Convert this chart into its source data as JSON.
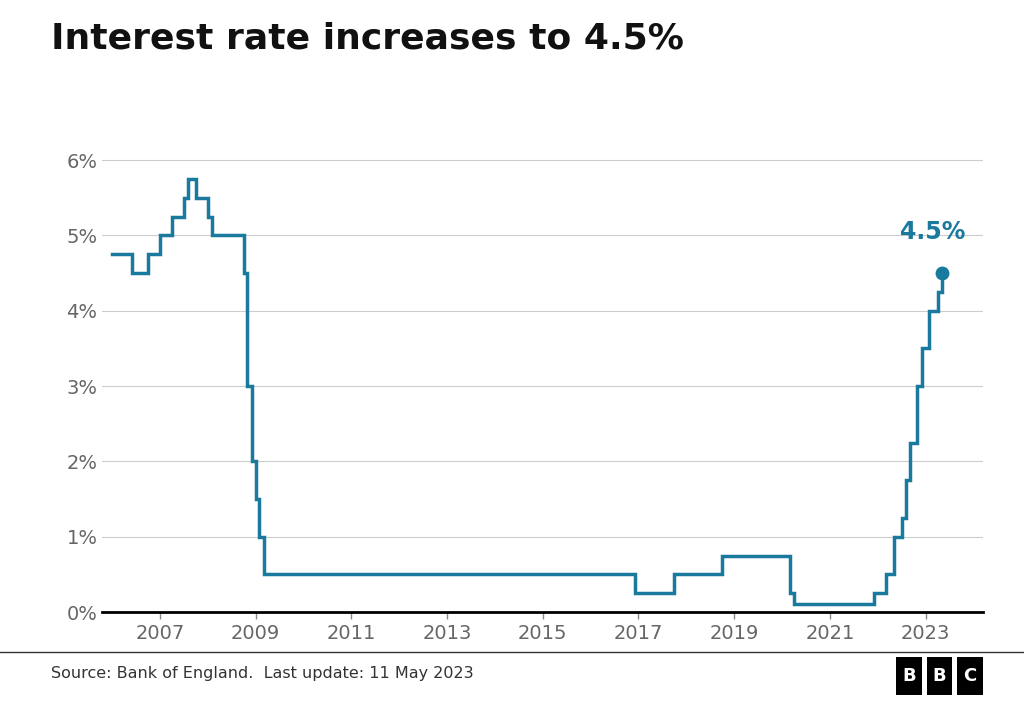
{
  "title": "Interest rate increases to 4.5%",
  "source_text": "Source: Bank of England.  Last update: 11 May 2023",
  "line_color": "#1a7a9e",
  "annotation_color": "#1a7a9e",
  "background_color": "#ffffff",
  "ylim": [
    0,
    6.5
  ],
  "yticks": [
    0,
    1,
    2,
    3,
    4,
    5,
    6
  ],
  "ytick_labels": [
    "0%",
    "1%",
    "2%",
    "3%",
    "4%",
    "5%",
    "6%"
  ],
  "xtick_years": [
    2007,
    2009,
    2011,
    2013,
    2015,
    2017,
    2019,
    2021,
    2023
  ],
  "annotation_value": "4.5%",
  "endpoint_year": 2023.35,
  "endpoint_value": 4.5,
  "xlim_left": 2005.8,
  "xlim_right": 2024.2,
  "data": [
    [
      2006.0,
      4.75
    ],
    [
      2006.42,
      4.5
    ],
    [
      2006.75,
      4.75
    ],
    [
      2007.0,
      5.0
    ],
    [
      2007.25,
      5.25
    ],
    [
      2007.5,
      5.5
    ],
    [
      2007.58,
      5.75
    ],
    [
      2007.75,
      5.5
    ],
    [
      2007.92,
      5.5
    ],
    [
      2008.0,
      5.25
    ],
    [
      2008.08,
      5.0
    ],
    [
      2008.25,
      5.0
    ],
    [
      2008.42,
      5.0
    ],
    [
      2008.58,
      5.0
    ],
    [
      2008.75,
      4.5
    ],
    [
      2008.83,
      3.0
    ],
    [
      2008.92,
      2.0
    ],
    [
      2009.0,
      1.5
    ],
    [
      2009.08,
      1.0
    ],
    [
      2009.17,
      0.5
    ],
    [
      2009.25,
      0.5
    ],
    [
      2016.67,
      0.5
    ],
    [
      2016.92,
      0.25
    ],
    [
      2017.0,
      0.25
    ],
    [
      2017.75,
      0.5
    ],
    [
      2018.0,
      0.5
    ],
    [
      2018.75,
      0.75
    ],
    [
      2019.0,
      0.75
    ],
    [
      2020.17,
      0.25
    ],
    [
      2020.25,
      0.1
    ],
    [
      2020.33,
      0.1
    ],
    [
      2021.92,
      0.1
    ],
    [
      2021.92,
      0.25
    ],
    [
      2022.17,
      0.5
    ],
    [
      2022.33,
      1.0
    ],
    [
      2022.5,
      1.25
    ],
    [
      2022.58,
      1.75
    ],
    [
      2022.67,
      2.25
    ],
    [
      2022.75,
      2.25
    ],
    [
      2022.83,
      3.0
    ],
    [
      2022.92,
      3.5
    ],
    [
      2023.0,
      3.5
    ],
    [
      2023.08,
      4.0
    ],
    [
      2023.25,
      4.25
    ],
    [
      2023.35,
      4.5
    ]
  ]
}
